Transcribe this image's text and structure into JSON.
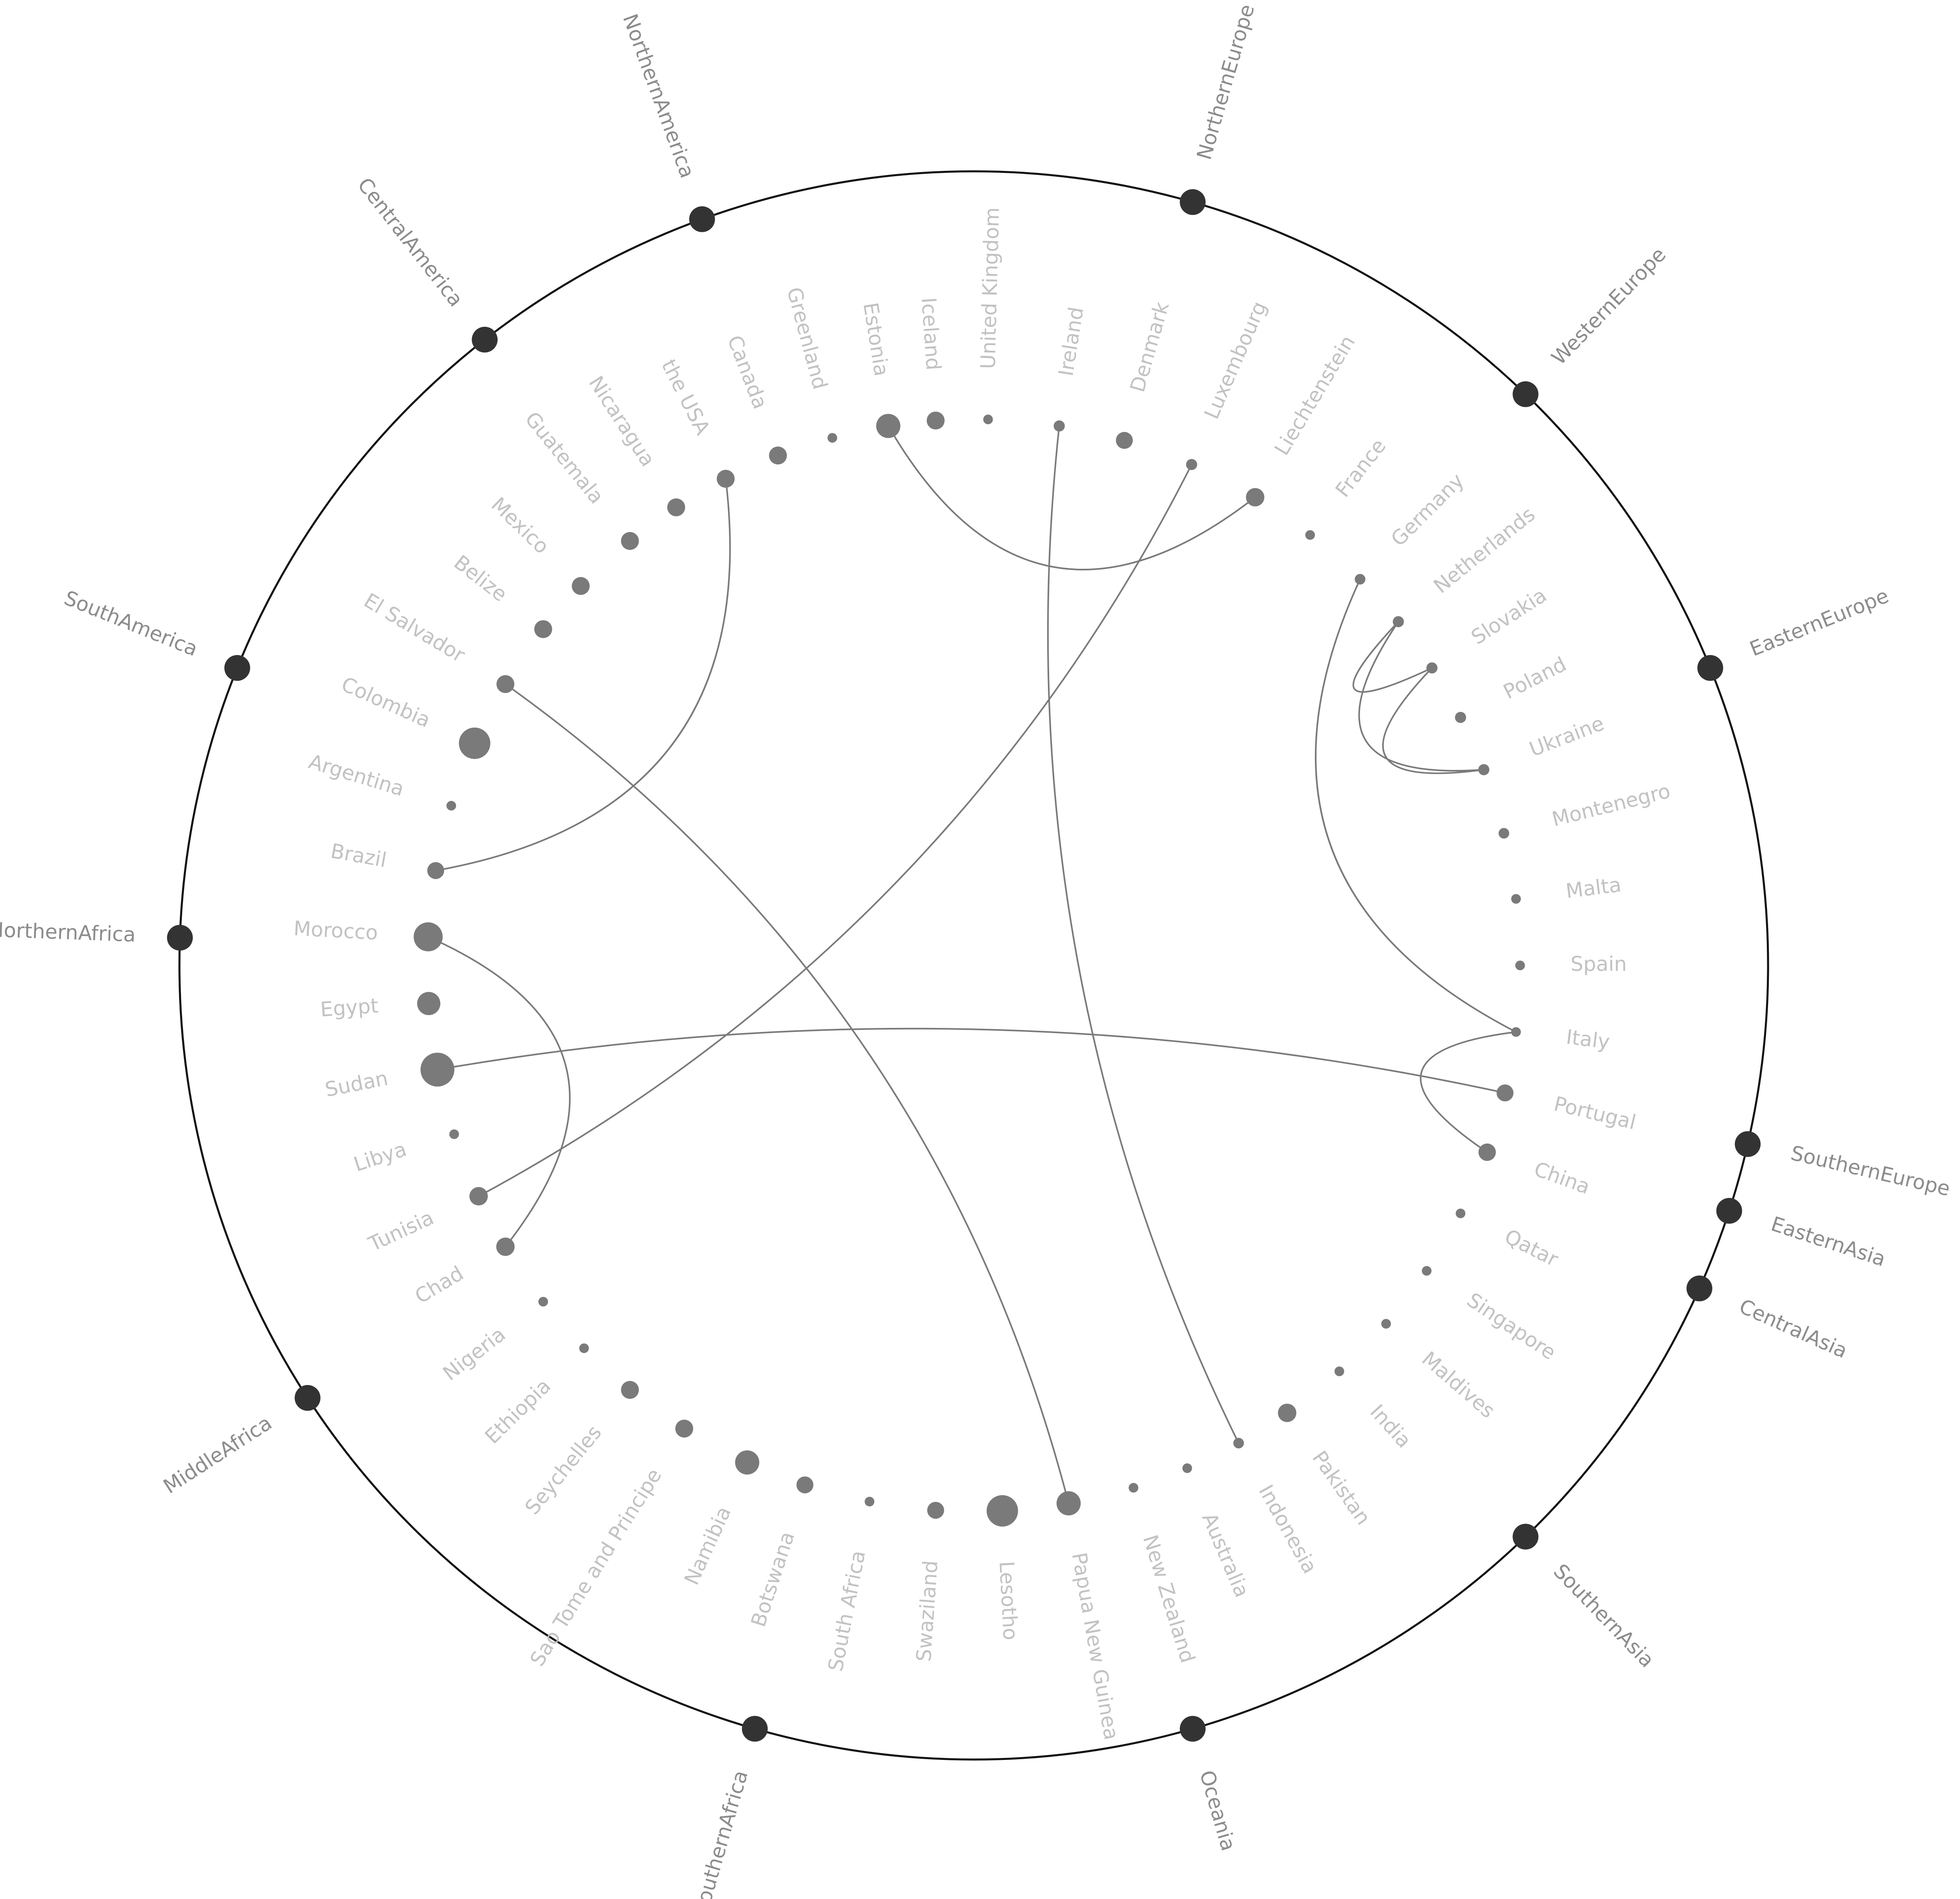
{
  "regions": [
    {
      "label": "NorthernEurope",
      "angle": 16
    },
    {
      "label": "WesternEurope",
      "angle": 44
    },
    {
      "label": "EasternEurope",
      "angle": 68
    },
    {
      "label": "SouthernEurope",
      "angle": 103
    },
    {
      "label": "EasternAsia",
      "angle": 108
    },
    {
      "label": "CentralAsia",
      "angle": 114
    },
    {
      "label": "SouthernAsia",
      "angle": 136
    },
    {
      "label": "Oceania",
      "angle": 164
    },
    {
      "label": "SouthernAfrica",
      "angle": 196
    },
    {
      "label": "MiddleAfrica",
      "angle": 237
    },
    {
      "label": "NorthernAfrica",
      "angle": 272
    },
    {
      "label": "SouthAmerica",
      "angle": 292
    },
    {
      "label": "CentralAmerica",
      "angle": 322
    },
    {
      "label": "NorthernAmerica",
      "angle": 340
    }
  ],
  "countries": [
    {
      "label": "United Kingdom",
      "angle": 1.5,
      "size": 1
    },
    {
      "label": "Ireland",
      "angle": 9,
      "size": 1.3
    },
    {
      "label": "Denmark",
      "angle": 16,
      "size": 2.5
    },
    {
      "label": "Luxembourg",
      "angle": 23.5,
      "size": 1.3
    },
    {
      "label": "Liechtenstein",
      "angle": 31,
      "size": 2.8
    },
    {
      "label": "France",
      "angle": 38,
      "size": 1
    },
    {
      "label": "Germany",
      "angle": 45,
      "size": 1.2
    },
    {
      "label": "Netherlands",
      "angle": 51,
      "size": 1.3
    },
    {
      "label": "Slovakia",
      "angle": 57,
      "size": 1.3
    },
    {
      "label": "Poland",
      "angle": 63,
      "size": 1.3
    },
    {
      "label": "Ukraine",
      "angle": 69,
      "size": 1.3
    },
    {
      "label": "Montenegro",
      "angle": 76,
      "size": 1.2
    },
    {
      "label": "Malta",
      "angle": 83,
      "size": 1
    },
    {
      "label": "Spain",
      "angle": 90,
      "size": 1
    },
    {
      "label": "Italy",
      "angle": 97,
      "size": 1
    },
    {
      "label": "Portugal",
      "angle": 103.5,
      "size": 2.5
    },
    {
      "label": "China",
      "angle": 110,
      "size": 2.6
    },
    {
      "label": "Qatar",
      "angle": 117,
      "size": 1
    },
    {
      "label": "Singapore",
      "angle": 124,
      "size": 1
    },
    {
      "label": "Maldives",
      "angle": 131,
      "size": 1
    },
    {
      "label": "India",
      "angle": 138,
      "size": 1
    },
    {
      "label": "Pakistan",
      "angle": 145,
      "size": 2.8
    },
    {
      "label": "Indonesia",
      "angle": 151,
      "size": 1.2
    },
    {
      "label": "Australia",
      "angle": 157,
      "size": 1
    },
    {
      "label": "New Zealand",
      "angle": 163,
      "size": 1
    },
    {
      "label": "Papua New Guinea",
      "angle": 170,
      "size": 4
    },
    {
      "label": "Lesotho",
      "angle": 177,
      "size": 5.5
    },
    {
      "label": "Swaziland",
      "angle": 184,
      "size": 2.5
    },
    {
      "label": "South Africa",
      "angle": 191,
      "size": 1
    },
    {
      "label": "Botswana",
      "angle": 198,
      "size": 2.5
    },
    {
      "label": "Namibia",
      "angle": 204.5,
      "size": 4
    },
    {
      "label": "Sao Tome and Principe",
      "angle": 212,
      "size": 2.7
    },
    {
      "label": "Seychelles",
      "angle": 219,
      "size": 2.7
    },
    {
      "label": "Ethiopia",
      "angle": 225.5,
      "size": 1
    },
    {
      "label": "Nigeria",
      "angle": 232,
      "size": 1
    },
    {
      "label": "Chad",
      "angle": 239,
      "size": 2.8
    },
    {
      "label": "Tunisia",
      "angle": 245,
      "size": 2.8
    },
    {
      "label": "Libya",
      "angle": 252,
      "size": 1
    },
    {
      "label": "Sudan",
      "angle": 259,
      "size": 6
    },
    {
      "label": "Egypt",
      "angle": 266,
      "size": 3.8
    },
    {
      "label": "Morocco",
      "angle": 273,
      "size": 5
    },
    {
      "label": "Brazil",
      "angle": 280,
      "size": 2.5
    },
    {
      "label": "Argentina",
      "angle": 287,
      "size": 1
    },
    {
      "label": "Colombia",
      "angle": 294,
      "size": 5.5
    },
    {
      "label": "El Salvador",
      "angle": 301,
      "size": 2.7
    },
    {
      "label": "Belize",
      "angle": 308,
      "size": 2.7
    },
    {
      "label": "Mexico",
      "angle": 314,
      "size": 2.7
    },
    {
      "label": "Guatemala",
      "angle": 321,
      "size": 2.7
    },
    {
      "label": "Nicaragua",
      "angle": 327,
      "size": 2.7
    },
    {
      "label": "the USA",
      "angle": 333,
      "size": 2.7
    },
    {
      "label": "Canada",
      "angle": 339,
      "size": 2.7
    },
    {
      "label": "Greenland",
      "angle": 345,
      "size": 1
    },
    {
      "label": "Estonia",
      "angle": 351,
      "size": 4
    },
    {
      "label": "Iceland",
      "angle": 356,
      "size": 2.7
    }
  ],
  "links": [
    {
      "source": "Estonia",
      "target": "Liechtenstein"
    },
    {
      "source": "Ireland",
      "target": "Indonesia"
    },
    {
      "source": "Luxembourg",
      "target": "Tunisia"
    },
    {
      "source": "El Salvador",
      "target": "Papua New Guinea"
    },
    {
      "source": "the USA",
      "target": "Brazil"
    },
    {
      "source": "Morocco",
      "target": "Chad"
    },
    {
      "source": "Sudan",
      "target": "Portugal"
    },
    {
      "source": "Germany",
      "target": "Italy"
    },
    {
      "source": "Netherlands",
      "target": "Slovakia"
    },
    {
      "source": "Netherlands",
      "target": "Ukraine"
    },
    {
      "source": "Slovakia",
      "target": "Ukraine"
    },
    {
      "source": "Italy",
      "target": "China"
    }
  ]
}
